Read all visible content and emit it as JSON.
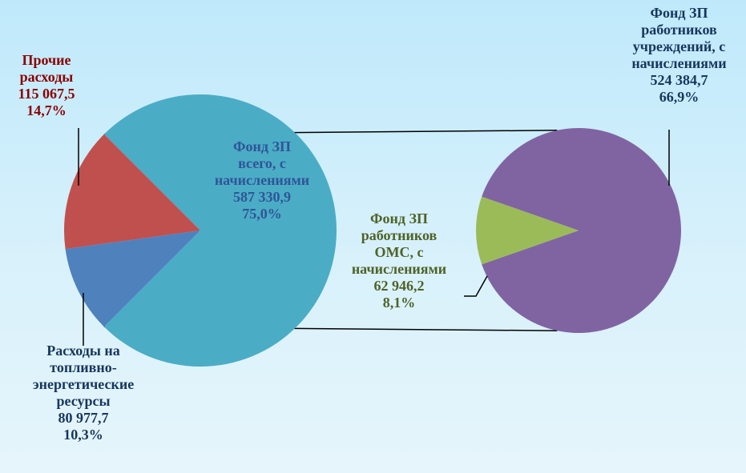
{
  "chart_data": {
    "type": "pie",
    "main_pie": {
      "slices": [
        {
          "label": "Фонд ЗП всего, с начислениями",
          "value": 587330.9,
          "value_label": "587 330,9",
          "percent_label": "75,0%",
          "color": "#4bacc6",
          "text_color": "#2f5597"
        },
        {
          "label": "Прочие расходы",
          "value": 115067.5,
          "value_label": "115 067,5",
          "percent_label": "14,7%",
          "color": "#c0504d",
          "text_color": "#8b0000"
        },
        {
          "label": "Расходы на топливно-энергетические ресурсы",
          "value": 80977.7,
          "value_label": "80 977,7",
          "percent_label": "10,3%",
          "color": "#4f81bd",
          "text_color": "#17365d"
        }
      ]
    },
    "secondary_pie": {
      "slices": [
        {
          "label": "Фонд ЗП работников учреждений, с начислениями",
          "value": 524384.7,
          "value_label": "524 384,7",
          "percent_label": "66,9%",
          "color": "#8064a2",
          "text_color": "#17365d"
        },
        {
          "label": "Фонд ЗП работников ОМС, с начислениями",
          "value": 62946.2,
          "value_label": "62 946,2",
          "percent_label": "8,1%",
          "color": "#9bbb59",
          "text_color": "#4f6228"
        }
      ]
    }
  },
  "labels": {
    "zp_total": [
      "Фонд ЗП",
      "всего, с",
      "начислениями",
      "587 330,9",
      "75,0%"
    ],
    "other": [
      "Прочие",
      "расходы",
      "115 067,5",
      "14,7%"
    ],
    "fuel": [
      "Расходы на",
      "топливно-",
      "энергетические",
      "ресурсы",
      "80 977,7",
      "10,3%"
    ],
    "zp_inst": [
      "Фонд ЗП",
      "работников",
      "учреждений, с",
      "начислениями",
      "524 384,7",
      "66,9%"
    ],
    "zp_oms": [
      "Фонд ЗП",
      "работников",
      "ОМС, с",
      "начислениями",
      "62 946,2",
      "8,1%"
    ]
  }
}
